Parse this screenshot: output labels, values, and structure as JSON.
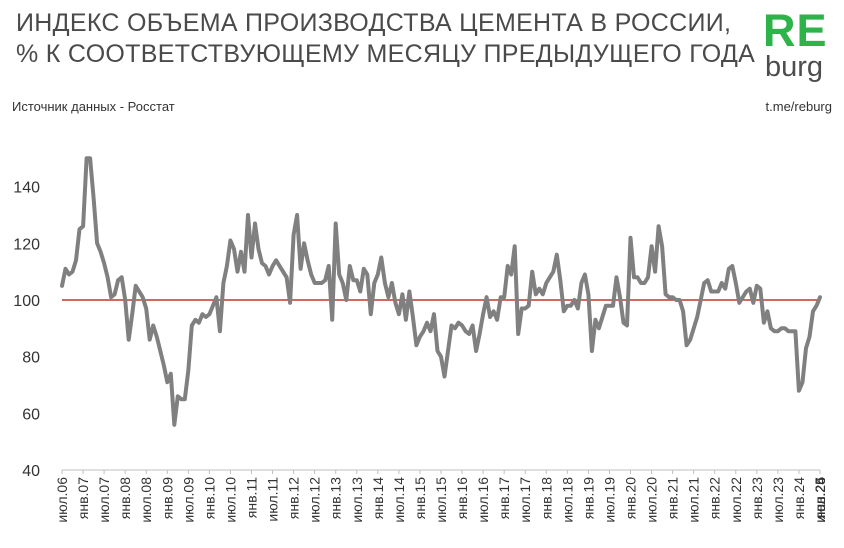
{
  "header": {
    "title_line1": "ИНДЕКС ОБЪЕМА ПРОИЗВОДСТВА ЦЕМЕНТА В РОССИИ,",
    "title_line2": "% К СООТВЕТСТВУЮЩЕМУ МЕСЯЦУ ПРЕДЫДУЩЕГО ГОДА",
    "source": "Источник данных  - Росстат",
    "channel": "t.me/reburg"
  },
  "logo": {
    "top": "RE",
    "bottom": "burg",
    "color": "#2db34a"
  },
  "colors": {
    "line": "#808080",
    "reference": "#c0392b",
    "text": "#4a4a4a"
  },
  "chart_data": {
    "type": "line",
    "title": "ИНДЕКС ОБЪЕМА ПРОИЗВОДСТВА ЦЕМЕНТА В РОССИИ, % К СООТВЕТСТВУЮЩЕМУ МЕСЯЦУ ПРЕДЫДУЩЕГО ГОДА",
    "xlabel": "",
    "ylabel": "",
    "ylim": [
      40,
      160
    ],
    "yticks": [
      40,
      60,
      80,
      100,
      120,
      140
    ],
    "grid": false,
    "reference_line": 100,
    "x_start": "2006-07",
    "x_end": "2026-07",
    "xticks": [
      "июл.06",
      "янв.07",
      "июл.07",
      "янв.08",
      "июл.08",
      "янв.09",
      "июл.09",
      "янв.10",
      "июл.10",
      "янв.11",
      "июл.11",
      "янв.12",
      "июл.12",
      "янв.13",
      "июл.13",
      "янв.14",
      "июл.14",
      "янв.15",
      "июл.15",
      "янв.16",
      "июл.16",
      "янв.17",
      "июл.17",
      "янв.18",
      "июл.18",
      "янв.19",
      "июл.19",
      "янв.20",
      "июл.20",
      "янв.21",
      "июл.21",
      "янв.22",
      "июл.22",
      "янв.23",
      "июл.23",
      "янв.24",
      "июл.24",
      "янв.25",
      "июл.25",
      "янв.26",
      "июл.26"
    ],
    "series": [
      {
        "values": [
          105,
          111,
          109,
          110,
          114,
          125,
          126,
          150,
          150,
          136,
          120,
          117,
          113,
          108,
          101,
          102,
          107,
          108,
          100,
          86,
          95,
          105,
          103,
          101,
          97,
          86,
          91,
          87,
          82,
          77,
          71,
          74,
          56,
          66,
          65,
          65,
          75,
          91,
          93,
          92,
          95,
          94,
          95,
          98,
          101,
          89,
          106,
          112,
          121,
          118,
          110,
          117,
          110,
          130,
          115,
          127,
          118,
          113,
          112,
          109,
          112,
          114,
          112,
          110,
          108,
          99,
          123,
          130,
          111,
          120,
          114,
          109,
          106,
          106,
          106,
          107,
          112,
          93,
          127,
          109,
          106,
          100,
          112,
          107,
          107,
          103,
          111,
          109,
          95,
          106,
          109,
          115,
          106,
          101,
          106,
          99,
          95,
          102,
          93,
          103,
          94,
          84,
          87,
          89,
          92,
          89,
          95,
          82,
          80,
          73,
          82,
          91,
          90,
          92,
          91,
          89,
          88,
          91,
          82,
          88,
          95,
          101,
          94,
          96,
          93,
          101,
          101,
          112,
          109,
          119,
          88,
          97,
          97,
          98,
          110,
          102,
          104,
          102,
          106,
          108,
          110,
          116,
          107,
          96,
          98,
          98,
          100,
          97,
          106,
          109,
          102,
          82,
          93,
          90,
          94,
          98,
          98,
          98,
          108,
          101,
          92,
          91,
          122,
          108,
          108,
          106,
          106,
          108,
          119,
          110,
          126,
          119,
          102,
          101,
          101,
          100,
          100,
          96,
          84,
          86,
          90,
          94,
          100,
          106,
          107,
          103,
          103,
          103,
          106,
          104,
          111,
          112,
          106,
          99,
          101,
          103,
          104,
          99,
          105,
          104,
          92,
          96,
          90,
          89,
          89,
          90,
          90,
          89,
          89,
          89,
          68,
          71,
          83,
          87,
          96,
          98,
          101
        ]
      }
    ]
  }
}
